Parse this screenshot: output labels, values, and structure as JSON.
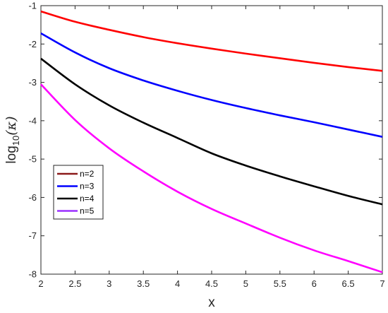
{
  "chart_data": {
    "type": "line",
    "title": "",
    "xlabel": "x",
    "ylabel_main": "log",
    "ylabel_sub": "10",
    "ylabel_arg": "(κ)",
    "xlim": [
      2,
      7
    ],
    "ylim": [
      -8,
      -1
    ],
    "x_ticks": [
      "2",
      "2.5",
      "3",
      "3.5",
      "4",
      "4.5",
      "5",
      "5.5",
      "6",
      "6.5",
      "7"
    ],
    "y_ticks": [
      "-1",
      "-2",
      "-3",
      "-4",
      "-5",
      "-6",
      "-7",
      "-8"
    ],
    "x_tick_values": [
      2,
      2.5,
      3,
      3.5,
      4,
      4.5,
      5,
      5.5,
      6,
      6.5,
      7
    ],
    "y_tick_values": [
      -1,
      -2,
      -3,
      -4,
      -5,
      -6,
      -7,
      -8
    ],
    "grid": false,
    "legend_position": "left-lower",
    "x": [
      2,
      2.5,
      3,
      3.5,
      4,
      4.5,
      5,
      5.5,
      6,
      6.5,
      7
    ],
    "series": [
      {
        "name": "n=2",
        "legend_color": "#8b1a1a",
        "line_color": "#ff0000",
        "values": [
          -1.15,
          -1.42,
          -1.63,
          -1.82,
          -1.98,
          -2.12,
          -2.25,
          -2.37,
          -2.49,
          -2.6,
          -2.7
        ]
      },
      {
        "name": "n=3",
        "legend_color": "#0000ff",
        "line_color": "#0000ff",
        "values": [
          -1.72,
          -2.22,
          -2.63,
          -2.95,
          -3.22,
          -3.46,
          -3.67,
          -3.86,
          -4.04,
          -4.23,
          -4.42
        ]
      },
      {
        "name": "n=4",
        "legend_color": "#000000",
        "line_color": "#000000",
        "values": [
          -2.38,
          -3.05,
          -3.6,
          -4.05,
          -4.45,
          -4.85,
          -5.17,
          -5.45,
          -5.71,
          -5.96,
          -6.18
        ]
      },
      {
        "name": "n=5",
        "legend_color": "#9b30ff",
        "line_color": "#ff00ff",
        "values": [
          -3.05,
          -3.98,
          -4.72,
          -5.32,
          -5.85,
          -6.3,
          -6.68,
          -7.05,
          -7.38,
          -7.66,
          -7.95
        ]
      }
    ]
  }
}
